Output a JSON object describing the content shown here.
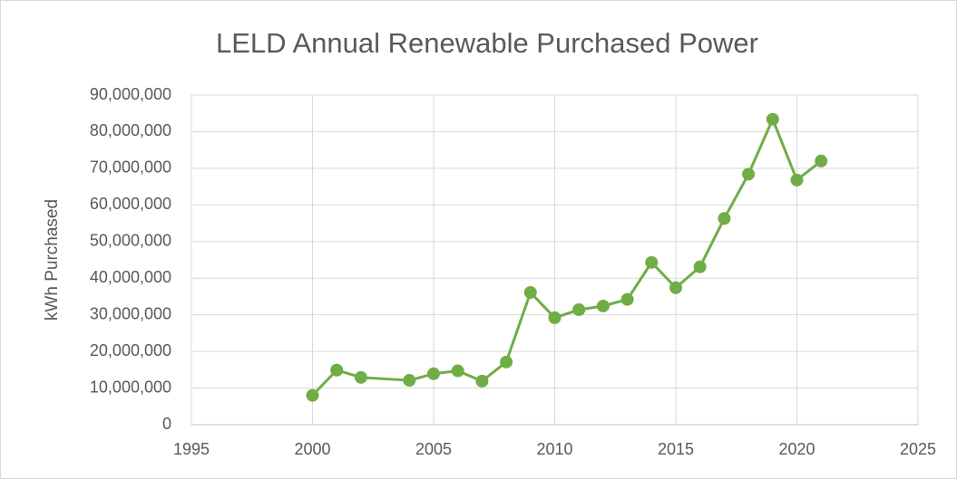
{
  "chart_data": {
    "type": "line",
    "title": "LELD Annual Renewable Purchased Power",
    "y_label": "kWh Purchased",
    "x": [
      2000,
      2001,
      2002,
      2004,
      2005,
      2006,
      2007,
      2008,
      2009,
      2010,
      2011,
      2012,
      2013,
      2014,
      2015,
      2016,
      2017,
      2018,
      2019,
      2020,
      2021
    ],
    "series": [
      {
        "color": "#70ad47",
        "values": [
          8000000,
          14900000,
          12900000,
          12100000,
          13900000,
          14700000,
          11900000,
          17100000,
          36100000,
          29200000,
          31400000,
          32400000,
          34200000,
          44300000,
          37400000,
          43100000,
          56300000,
          68400000,
          83400000,
          66800000,
          72000000
        ]
      }
    ],
    "xlim": [
      1995,
      2025
    ],
    "xticks": [
      1995,
      2000,
      2005,
      2010,
      2015,
      2020,
      2025
    ],
    "ylim": [
      0,
      90000000
    ],
    "yticks": [
      0,
      {
        "value": 10000000,
        "label": "10,000,000"
      },
      {
        "value": 20000000,
        "label": "20,000,000"
      },
      {
        "value": 30000000,
        "label": "30,000,000"
      },
      {
        "value": 40000000,
        "label": "40,000,000"
      },
      {
        "value": 50000000,
        "label": "50,000,000"
      },
      {
        "value": 60000000,
        "label": "60,000,000"
      },
      {
        "value": 70000000,
        "label": "70,000,000"
      },
      {
        "value": 80000000,
        "label": "80,000,000"
      },
      {
        "value": 90000000,
        "label": "90,000,000"
      }
    ],
    "grid": true
  }
}
